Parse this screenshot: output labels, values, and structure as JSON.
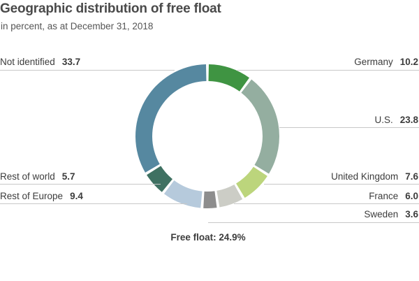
{
  "chart_data": {
    "type": "pie",
    "title": "Geographic distribution of free float",
    "subtitle": "in percent, as at December 31, 2018",
    "caption_prefix": "Free float: ",
    "caption_value": "24.9%",
    "slices": [
      {
        "name": "Germany",
        "value": 10.2,
        "color": "#3f9442"
      },
      {
        "name": "U.S.",
        "value": 23.8,
        "color": "#94aea0"
      },
      {
        "name": "United Kingdom",
        "value": 7.6,
        "color": "#bcd57c"
      },
      {
        "name": "France",
        "value": 6.0,
        "color": "#cccdc6"
      },
      {
        "name": "Sweden",
        "value": 3.6,
        "color": "#8d8d8d"
      },
      {
        "name": "Rest of Europe",
        "value": 9.4,
        "color": "#b6cadc"
      },
      {
        "name": "Rest of world",
        "value": 5.7,
        "color": "#3f7162"
      },
      {
        "name": "Not identified",
        "value": 33.7,
        "color": "#5688a0"
      }
    ]
  }
}
